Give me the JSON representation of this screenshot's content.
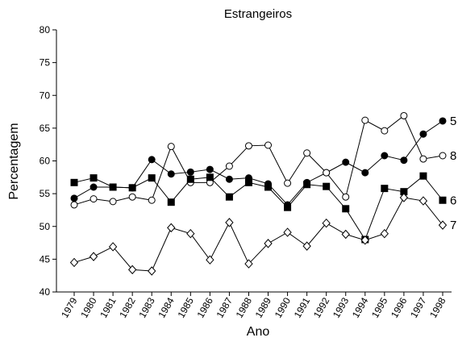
{
  "chart_data": {
    "type": "line",
    "title": "Estrangeiros",
    "x_label": "Ano",
    "y_label": "Percentagem",
    "categories": [
      "1979",
      "1980",
      "1981",
      "1982",
      "1983",
      "1984",
      "1985",
      "1986",
      "1987",
      "1988",
      "1989",
      "1990",
      "1991",
      "1992",
      "1993",
      "1994",
      "1995",
      "1996",
      "1997",
      "1998"
    ],
    "ylim": [
      40,
      80
    ],
    "yticks": [
      40,
      45,
      50,
      55,
      60,
      65,
      70,
      75,
      80
    ],
    "grid": false,
    "legend": "line-end",
    "series": [
      {
        "name": "5",
        "color": "#000000",
        "marker": "filled-circle",
        "values": [
          54.3,
          56.0,
          56.0,
          55.9,
          60.2,
          58.0,
          58.3,
          58.7,
          57.2,
          57.4,
          56.5,
          53.3,
          56.7,
          58.2,
          59.8,
          58.2,
          60.8,
          60.1,
          64.1,
          66.1
        ]
      },
      {
        "name": "8",
        "color": "#000000",
        "marker": "open-circle",
        "values": [
          53.3,
          54.2,
          53.8,
          54.5,
          54.0,
          62.2,
          56.7,
          56.7,
          59.2,
          62.3,
          62.4,
          56.6,
          61.2,
          58.2,
          54.5,
          66.2,
          64.6,
          66.9,
          60.3,
          60.8
        ]
      },
      {
        "name": "6",
        "color": "#000000",
        "marker": "filled-square",
        "values": [
          56.7,
          57.4,
          56.0,
          55.9,
          57.4,
          53.7,
          57.2,
          57.5,
          54.5,
          56.7,
          56.0,
          52.9,
          56.4,
          56.1,
          52.7,
          48.0,
          55.8,
          55.3,
          57.7,
          54.0
        ]
      },
      {
        "name": "7",
        "color": "#000000",
        "marker": "open-diamond",
        "values": [
          44.5,
          45.4,
          46.9,
          43.4,
          43.2,
          49.8,
          48.9,
          44.9,
          50.6,
          44.3,
          47.4,
          49.1,
          47.0,
          50.5,
          48.8,
          47.9,
          48.9,
          54.4,
          53.9,
          50.2
        ]
      }
    ]
  }
}
